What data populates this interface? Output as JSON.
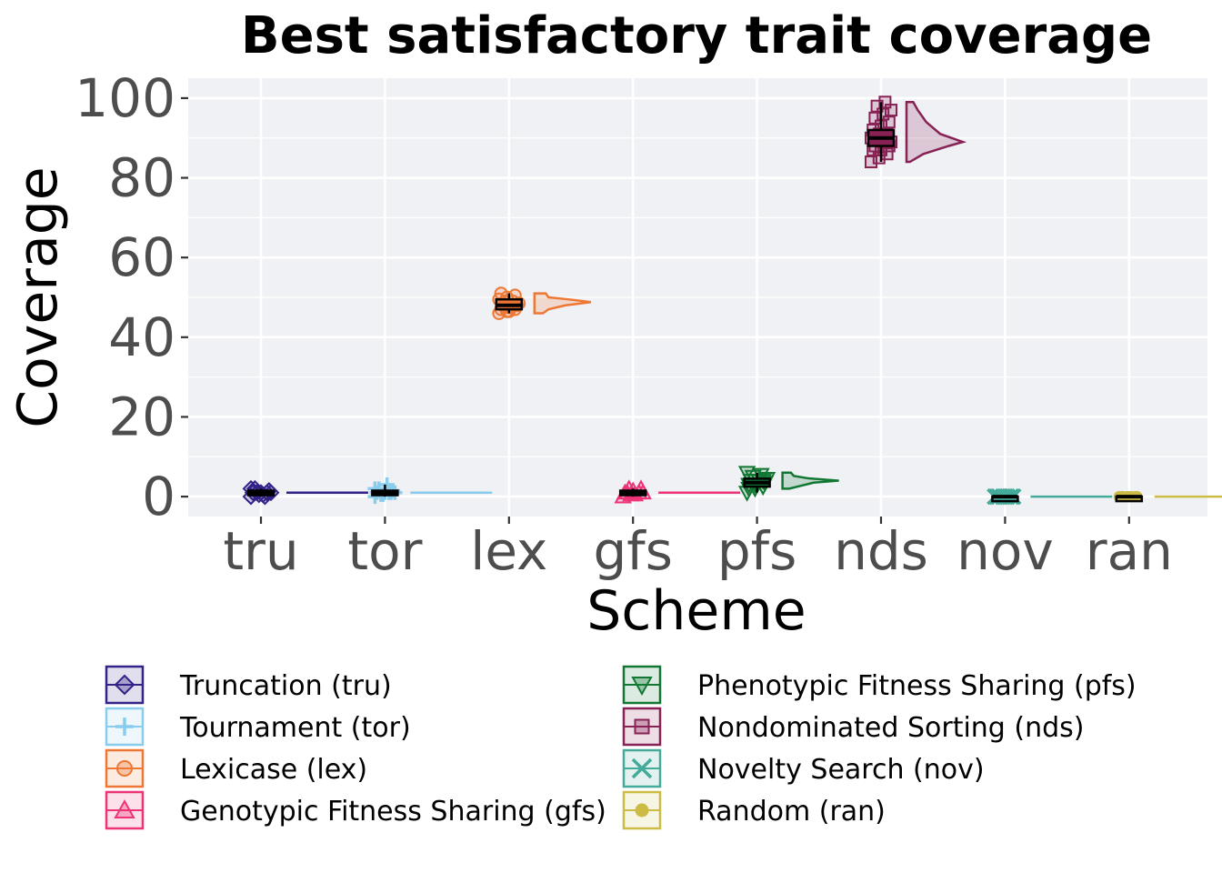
{
  "chart_data": {
    "type": "raincloud",
    "title": "Best satisfactory trait coverage",
    "xlabel": "Scheme",
    "ylabel": "Coverage",
    "ylim": [
      -5,
      105
    ],
    "yticks": [
      0,
      20,
      40,
      60,
      80,
      100
    ],
    "grid": true,
    "legend_position": "bottom",
    "categories": [
      "tru",
      "tor",
      "lex",
      "gfs",
      "pfs",
      "nds",
      "nov",
      "ran"
    ],
    "series": [
      {
        "key": "tru",
        "name": "Truncation (tru)",
        "color": "#332288",
        "marker": "diamond-icon",
        "stats": {
          "min": 0,
          "q1": 0.5,
          "median": 1,
          "q3": 1.5,
          "max": 2
        },
        "density": [
          [
            1,
            1
          ]
        ],
        "points": [
          0,
          0.5,
          1,
          1,
          1,
          1.5,
          2,
          0.5,
          1,
          1,
          0,
          2
        ]
      },
      {
        "key": "tor",
        "name": "Tournament (tor)",
        "color": "#88CCEE",
        "marker": "plus-icon",
        "stats": {
          "min": 0,
          "q1": 0.5,
          "median": 1,
          "q3": 1.5,
          "max": 3
        },
        "density": [
          [
            1,
            1
          ]
        ],
        "points": [
          0,
          0.5,
          1,
          1,
          1,
          1.5,
          2,
          3,
          1,
          0.5,
          1,
          2
        ]
      },
      {
        "key": "lex",
        "name": "Lexicase (lex)",
        "color": "#EE7733",
        "marker": "circle-icon",
        "stats": {
          "min": 46,
          "q1": 47,
          "median": 48,
          "q3": 49.5,
          "max": 51
        },
        "density": [
          [
            46,
            0.15
          ],
          [
            47,
            0.25
          ],
          [
            48,
            0.55
          ],
          [
            48.8,
            1.0
          ],
          [
            49.5,
            0.6
          ],
          [
            50,
            0.25
          ],
          [
            51,
            0.2
          ]
        ],
        "points": [
          46,
          46.5,
          47,
          47,
          47.5,
          48,
          48,
          48,
          48.5,
          49,
          49,
          49.5,
          50,
          50.5,
          51,
          46.5,
          48
        ]
      },
      {
        "key": "gfs",
        "name": "Genotypic Fitness Sharing (gfs)",
        "color": "#EE3377",
        "marker": "triangle-up-icon",
        "stats": {
          "min": 0,
          "q1": 0.5,
          "median": 1,
          "q3": 1.5,
          "max": 2
        },
        "density": [
          [
            1,
            1
          ]
        ],
        "points": [
          0,
          0.5,
          1,
          1,
          1.5,
          2,
          1,
          0.5,
          1,
          2
        ]
      },
      {
        "key": "pfs",
        "name": "Phenotypic Fitness Sharing (pfs)",
        "color": "#117733",
        "marker": "triangle-down-icon",
        "stats": {
          "min": 1,
          "q1": 2.5,
          "median": 3.5,
          "q3": 4.5,
          "max": 6
        },
        "density": [
          [
            2,
            0.12
          ],
          [
            2.8,
            0.35
          ],
          [
            3.5,
            0.55
          ],
          [
            4,
            1.0
          ],
          [
            4.6,
            0.45
          ],
          [
            5.2,
            0.2
          ],
          [
            6,
            0.15
          ]
        ],
        "points": [
          1,
          2,
          2.5,
          3,
          3,
          3.5,
          4,
          4,
          4.5,
          5,
          5.5,
          6,
          3,
          4,
          2
        ]
      },
      {
        "key": "nds",
        "name": "Nondominated Sorting (nds)",
        "color": "#882255",
        "marker": "square-icon",
        "stats": {
          "min": 84,
          "q1": 88,
          "median": 90,
          "q3": 92,
          "max": 99
        },
        "density": [
          [
            84,
            0.06
          ],
          [
            86,
            0.3
          ],
          [
            88,
            0.75
          ],
          [
            89,
            1.0
          ],
          [
            91,
            0.6
          ],
          [
            94,
            0.35
          ],
          [
            97,
            0.2
          ],
          [
            99,
            0.12
          ]
        ],
        "points": [
          84,
          85,
          86,
          87,
          87,
          88,
          88,
          89,
          89,
          90,
          90,
          90,
          91,
          91,
          92,
          93,
          94,
          95,
          96,
          97,
          98,
          99
        ]
      },
      {
        "key": "nov",
        "name": "Novelty Search (nov)",
        "color": "#44AA99",
        "marker": "x-icon",
        "stats": {
          "min": 0,
          "q1": 0,
          "median": 0,
          "q3": 0,
          "max": 0
        },
        "density": [
          [
            0,
            1
          ]
        ],
        "points": [
          0,
          0,
          0,
          0,
          0,
          0,
          0,
          0
        ]
      },
      {
        "key": "ran",
        "name": "Random (ran)",
        "color": "#CCBB44",
        "marker": "dot-icon",
        "stats": {
          "min": 0,
          "q1": 0,
          "median": 0,
          "q3": 0,
          "max": 0
        },
        "density": [
          [
            0,
            1
          ]
        ],
        "points": [
          0,
          0,
          0,
          0,
          0,
          0,
          0,
          0
        ]
      }
    ]
  }
}
